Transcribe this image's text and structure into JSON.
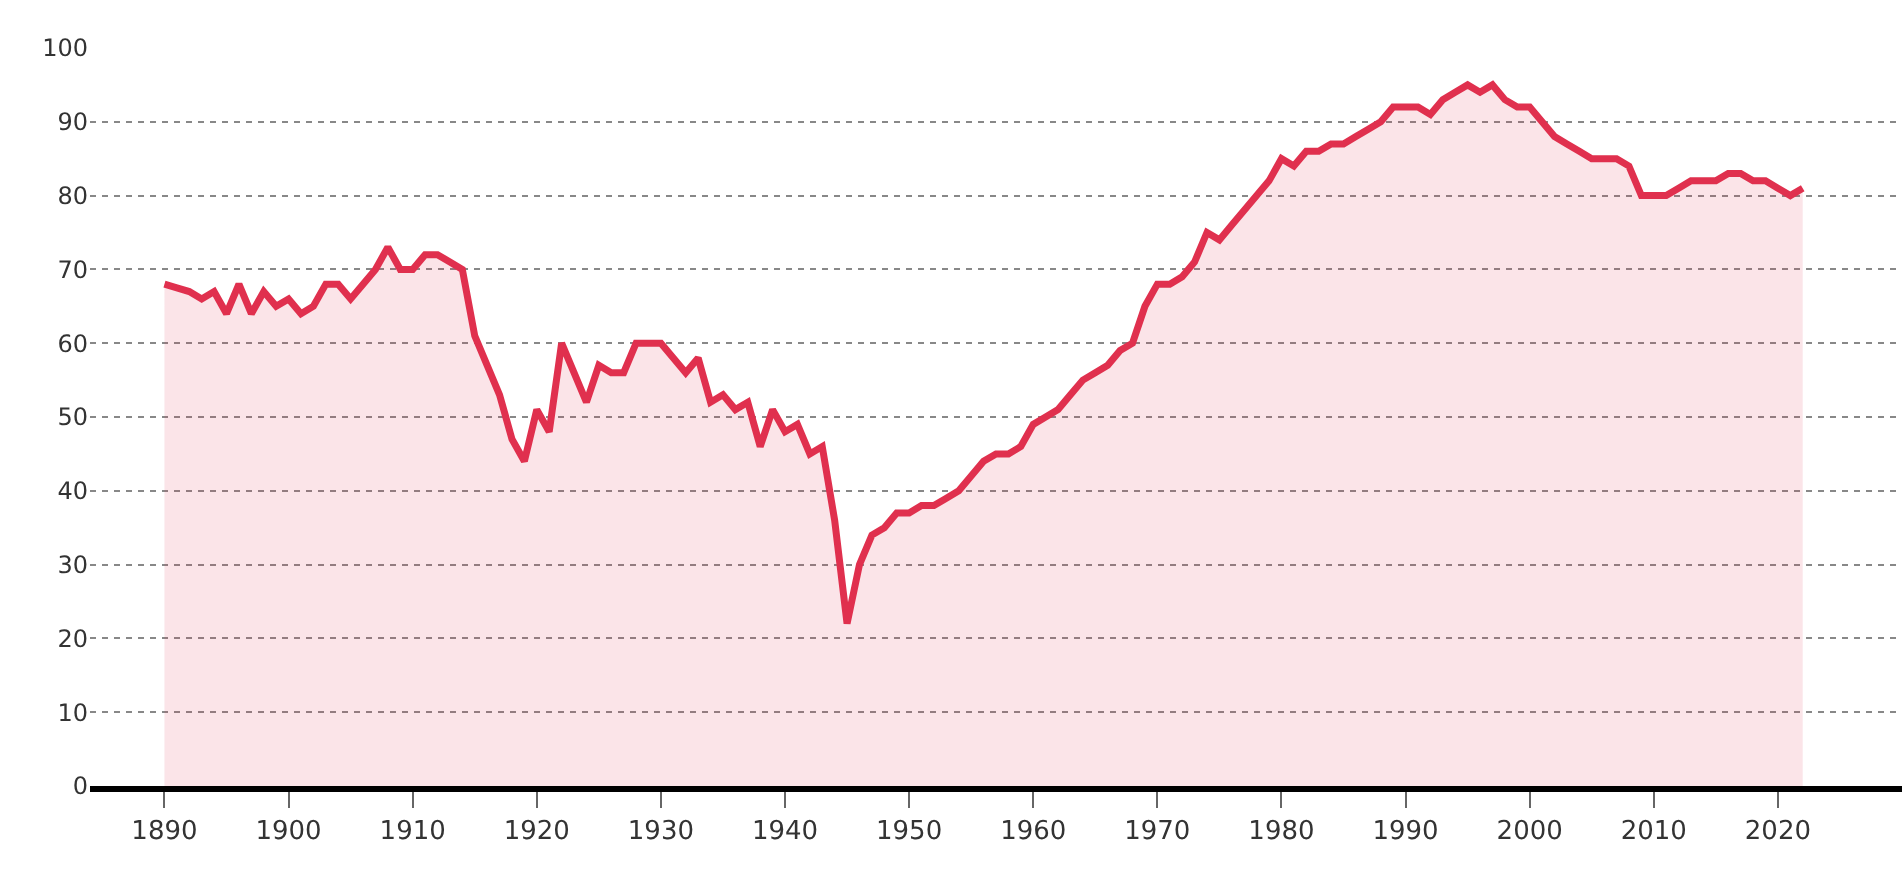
{
  "chart_data": {
    "type": "area",
    "x": [
      1890,
      1891,
      1892,
      1893,
      1894,
      1895,
      1896,
      1897,
      1898,
      1899,
      1900,
      1901,
      1902,
      1903,
      1904,
      1905,
      1906,
      1907,
      1908,
      1909,
      1910,
      1911,
      1912,
      1913,
      1914,
      1915,
      1916,
      1917,
      1918,
      1919,
      1920,
      1921,
      1922,
      1923,
      1924,
      1925,
      1926,
      1927,
      1928,
      1929,
      1930,
      1931,
      1932,
      1933,
      1934,
      1935,
      1936,
      1937,
      1938,
      1939,
      1940,
      1941,
      1942,
      1943,
      1944,
      1945,
      1946,
      1947,
      1948,
      1949,
      1950,
      1951,
      1952,
      1953,
      1954,
      1955,
      1956,
      1957,
      1958,
      1959,
      1960,
      1961,
      1962,
      1963,
      1964,
      1965,
      1966,
      1967,
      1968,
      1969,
      1970,
      1971,
      1972,
      1973,
      1974,
      1975,
      1976,
      1977,
      1978,
      1979,
      1980,
      1981,
      1982,
      1983,
      1984,
      1985,
      1986,
      1987,
      1988,
      1989,
      1990,
      1991,
      1992,
      1993,
      1994,
      1995,
      1996,
      1997,
      1998,
      1999,
      2000,
      2001,
      2002,
      2003,
      2004,
      2005,
      2006,
      2007,
      2008,
      2009,
      2010,
      2011,
      2012,
      2013,
      2014,
      2015,
      2016,
      2017,
      2018,
      2019,
      2020,
      2021,
      2022
    ],
    "series": [
      {
        "color": "#e0304e",
        "values": [
          68,
          67.5,
          67,
          66,
          67,
          64,
          68,
          64,
          67,
          65,
          66,
          64,
          65,
          68,
          68,
          66,
          68,
          70,
          73,
          70,
          70,
          72,
          72,
          71,
          70,
          61,
          57,
          53,
          47,
          44,
          51,
          48,
          60,
          56,
          52,
          57,
          56,
          56,
          60,
          60,
          60,
          58,
          56,
          58,
          52,
          53,
          51,
          52,
          46,
          51,
          48,
          49,
          45,
          46,
          36,
          22,
          30,
          34,
          35,
          37,
          37,
          38,
          38,
          39,
          40,
          42,
          44,
          45,
          45,
          46,
          49,
          50,
          51,
          53,
          55,
          56,
          57,
          59,
          60,
          65,
          68,
          68,
          69,
          71,
          75,
          74,
          76,
          78,
          80,
          82,
          85,
          84,
          86,
          86,
          87,
          87,
          88,
          89,
          90,
          92,
          92,
          92,
          91,
          93,
          94,
          95,
          94,
          95,
          93,
          92,
          92,
          90,
          88,
          87,
          86,
          85,
          85,
          85,
          84,
          80,
          80,
          80,
          81,
          82,
          82,
          82,
          83,
          83,
          82,
          82,
          81,
          80,
          81
        ]
      }
    ],
    "xlim": [
      1884,
      2030
    ],
    "ylim": [
      0,
      100
    ],
    "xticks": [
      1890,
      1900,
      1910,
      1920,
      1930,
      1940,
      1950,
      1960,
      1970,
      1980,
      1990,
      2000,
      2010,
      2020
    ],
    "yticks": [
      0,
      10,
      20,
      30,
      40,
      50,
      60,
      70,
      80,
      90,
      100
    ],
    "grid": "y",
    "marker": "none",
    "line_style": "solid"
  }
}
